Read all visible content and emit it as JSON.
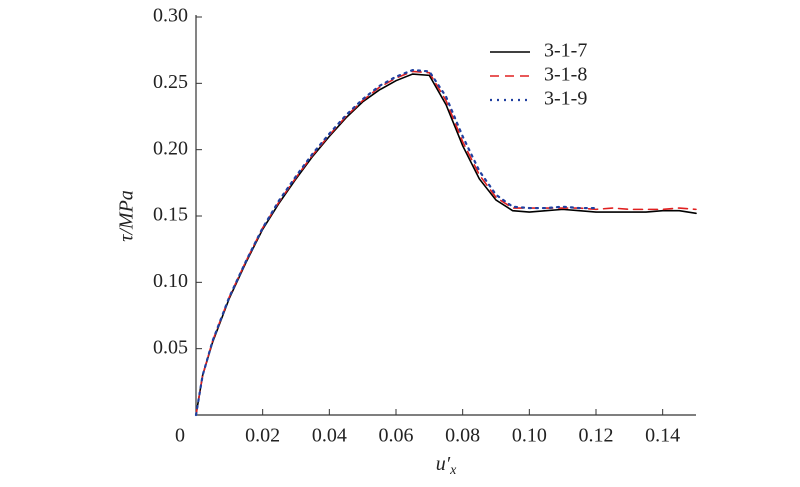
{
  "chart_data": {
    "type": "line",
    "y_label": "τ/MPa",
    "x_label": {
      "base": "u′",
      "sub": "x"
    },
    "x": [
      0,
      0.002,
      0.005,
      0.01,
      0.015,
      0.02,
      0.025,
      0.03,
      0.035,
      0.04,
      0.045,
      0.05,
      0.055,
      0.06,
      0.065,
      0.07,
      0.075,
      0.08,
      0.085,
      0.09,
      0.095,
      0.1,
      0.105,
      0.11,
      0.115,
      0.12,
      0.125,
      0.13,
      0.135,
      0.14,
      0.145,
      0.15
    ],
    "series": [
      {
        "name": "3-1-7",
        "color": "#000000",
        "dash": "solid",
        "values": [
          0,
          0.03,
          0.055,
          0.088,
          0.115,
          0.14,
          0.16,
          0.178,
          0.195,
          0.21,
          0.224,
          0.236,
          0.245,
          0.252,
          0.257,
          0.256,
          0.234,
          0.203,
          0.178,
          0.162,
          0.154,
          0.153,
          0.154,
          0.155,
          0.154,
          0.153,
          0.153,
          0.153,
          0.153,
          0.154,
          0.154,
          0.152
        ]
      },
      {
        "name": "3-1-8",
        "color": "#e02020",
        "dash": "dashed",
        "values": [
          0,
          0.03,
          0.056,
          0.089,
          0.116,
          0.141,
          0.161,
          0.179,
          0.196,
          0.211,
          0.225,
          0.237,
          0.247,
          0.254,
          0.259,
          0.258,
          0.237,
          0.206,
          0.181,
          0.164,
          0.156,
          0.156,
          0.156,
          0.156,
          0.156,
          0.155,
          0.156,
          0.155,
          0.155,
          0.155,
          0.156,
          0.155
        ]
      },
      {
        "name": "3-1-9",
        "color": "#2040a0",
        "dash": "dotted",
        "values": [
          0,
          0.03,
          0.056,
          0.089,
          0.116,
          0.141,
          0.162,
          0.18,
          0.197,
          0.212,
          0.226,
          0.238,
          0.248,
          0.255,
          0.26,
          0.259,
          0.24,
          0.21,
          0.184,
          0.166,
          0.157,
          0.156,
          0.156,
          0.157,
          0.156,
          0.156,
          null,
          null,
          null,
          null,
          null,
          null
        ]
      }
    ],
    "xlim": [
      0,
      0.15
    ],
    "ylim": [
      0,
      0.3
    ],
    "xticks": [
      0,
      0.02,
      0.04,
      0.06,
      0.08,
      {
        "value": 0.1,
        "label": "0.10"
      },
      0.12,
      0.14
    ],
    "yticks": [
      0.05,
      {
        "value": 0.1,
        "label": "0.10"
      },
      0.15,
      {
        "value": 0.2,
        "label": "0.20"
      },
      0.25,
      {
        "value": 0.3,
        "label": "0.30"
      }
    ],
    "legend": "upper-right"
  }
}
